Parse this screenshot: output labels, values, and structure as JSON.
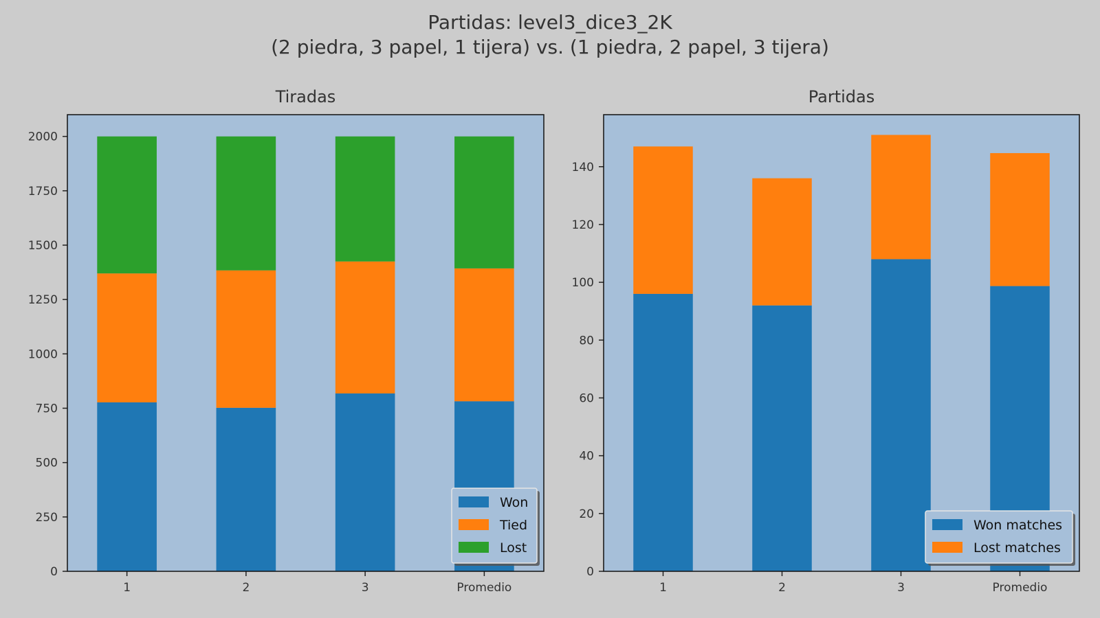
{
  "figure": {
    "title_line1": "Partidas: level3_dice3_2K",
    "title_line2": "(2 piedra, 3 papel, 1 tijera) vs. (1 piedra, 2 papel, 3 tijera)",
    "background": "#cccccc",
    "axes_background": "#a6bfd9"
  },
  "chart_data": [
    {
      "type": "bar",
      "stacked": true,
      "title": "Tiradas",
      "categories": [
        "1",
        "2",
        "3",
        "Promedio"
      ],
      "series": [
        {
          "name": "Won",
          "color": "#1f77b4",
          "values": [
            777,
            752,
            818,
            782
          ]
        },
        {
          "name": "Tied",
          "color": "#ff7f0e",
          "values": [
            593,
            632,
            607,
            611
          ]
        },
        {
          "name": "Lost",
          "color": "#2ca02c",
          "values": [
            630,
            616,
            575,
            607
          ]
        }
      ],
      "ylim": [
        0,
        2100
      ],
      "yticks": [
        0,
        250,
        500,
        750,
        1000,
        1250,
        1500,
        1750,
        2000
      ],
      "legend": "bottom-right",
      "grid": false
    },
    {
      "type": "bar",
      "stacked": true,
      "title": "Partidas",
      "categories": [
        "1",
        "2",
        "3",
        "Promedio"
      ],
      "series": [
        {
          "name": "Won matches",
          "color": "#1f77b4",
          "values": [
            96,
            92,
            108,
            98.7
          ]
        },
        {
          "name": "Lost matches",
          "color": "#ff7f0e",
          "values": [
            51,
            44,
            43,
            46
          ]
        }
      ],
      "ylim": [
        0,
        158
      ],
      "yticks": [
        0,
        20,
        40,
        60,
        80,
        100,
        120,
        140
      ],
      "legend": "bottom-right",
      "grid": false
    }
  ]
}
